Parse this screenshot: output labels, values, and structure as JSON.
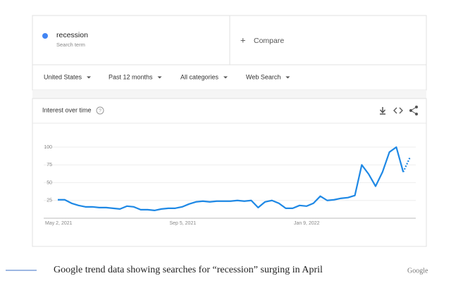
{
  "search": {
    "term": "recession",
    "term_type": "Search term",
    "compare": "Compare"
  },
  "filters": [
    "United States",
    "Past 12 months",
    "All categories",
    "Web Search"
  ],
  "chart_data": {
    "type": "line",
    "title": "Interest over time",
    "categories": [
      "May 2, 2021",
      null,
      null,
      null,
      null,
      null,
      null,
      null,
      null,
      null,
      null,
      null,
      null,
      null,
      null,
      null,
      null,
      null,
      "Sep 5, 2021",
      null,
      null,
      null,
      null,
      null,
      null,
      null,
      null,
      null,
      null,
      null,
      null,
      null,
      null,
      null,
      null,
      null,
      "Jan 9, 2022",
      null,
      null,
      null,
      null,
      null,
      null,
      null,
      null,
      null,
      null,
      null,
      null,
      null,
      null,
      null
    ],
    "values": [
      26,
      26,
      21,
      18,
      16,
      16,
      15,
      15,
      14,
      13,
      17,
      16,
      12,
      12,
      11,
      13,
      14,
      14,
      16,
      20,
      23,
      24,
      23,
      24,
      24,
      24,
      25,
      24,
      25,
      15,
      23,
      25,
      21,
      14,
      14,
      18,
      17,
      21,
      31,
      25,
      26,
      28,
      29,
      32,
      75,
      62,
      45,
      65,
      93,
      100,
      65,
      86
    ],
    "color": "#1e88e5",
    "ylim": [
      0,
      100
    ],
    "yticks": [
      25,
      50,
      75,
      100
    ],
    "grid": true
  },
  "caption": "Google trend data showing searches for “recession” surging in April",
  "credit": "Google"
}
